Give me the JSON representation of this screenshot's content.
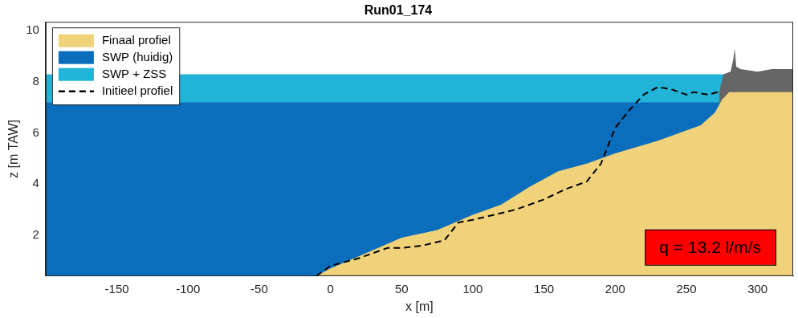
{
  "chart_data": {
    "type": "area",
    "title": "Run01_174",
    "x_label": "x [m]",
    "y_label": "z [m TAW]",
    "xlim": [
      -200,
      325
    ],
    "ylim": [
      0.4,
      10.35
    ],
    "xticks": [
      -150,
      -100,
      -50,
      0,
      50,
      100,
      150,
      200,
      250,
      300
    ],
    "yticks": [
      2,
      4,
      6,
      8,
      10
    ],
    "grid": false,
    "legend": "top-left",
    "series": [
      {
        "name": "Finaal profiel",
        "type": "area",
        "color": "#f0d27a",
        "x": [
          -10,
          0,
          25,
          50,
          75,
          100,
          120,
          140,
          160,
          180,
          200,
          230,
          260,
          270,
          275,
          280,
          325
        ],
        "values": [
          0.4,
          0.7,
          1.3,
          1.9,
          2.2,
          2.8,
          3.2,
          3.9,
          4.5,
          4.8,
          5.2,
          5.7,
          6.3,
          6.8,
          7.3,
          7.6,
          7.6
        ]
      },
      {
        "type": "area",
        "color": "#666666",
        "x": [
          273,
          276,
          281,
          283,
          284,
          285,
          288,
          300,
          310,
          325
        ],
        "values": [
          7.6,
          8.3,
          8.4,
          8.9,
          9.3,
          8.6,
          8.5,
          8.4,
          8.5,
          8.5
        ]
      },
      {
        "name": "SWP (huidig)",
        "type": "area",
        "color": "#0a6ebd",
        "x": [
          -200,
          325
        ],
        "values": [
          7.2,
          7.2
        ]
      },
      {
        "name": "SWP + ZSS",
        "type": "area",
        "color": "#22b4d8",
        "x": [
          -200,
          325
        ],
        "values": [
          8.3,
          8.3
        ]
      },
      {
        "name": "Initieel profiel",
        "type": "line",
        "line_style": "dashed",
        "color": "#000000",
        "x": [
          -10,
          0,
          20,
          40,
          50,
          65,
          80,
          90,
          100,
          115,
          130,
          150,
          165,
          180,
          190,
          200,
          210,
          220,
          230,
          240,
          250,
          255,
          265,
          272
        ],
        "values": [
          0.4,
          0.8,
          1.1,
          1.5,
          1.5,
          1.6,
          1.8,
          2.5,
          2.6,
          2.8,
          3.0,
          3.4,
          3.8,
          4.1,
          4.8,
          6.2,
          6.9,
          7.5,
          7.8,
          7.7,
          7.5,
          7.6,
          7.5,
          7.6
        ]
      }
    ],
    "annotation": {
      "text": "q = 13.2 l/m/s",
      "color": "#ff0000"
    }
  }
}
